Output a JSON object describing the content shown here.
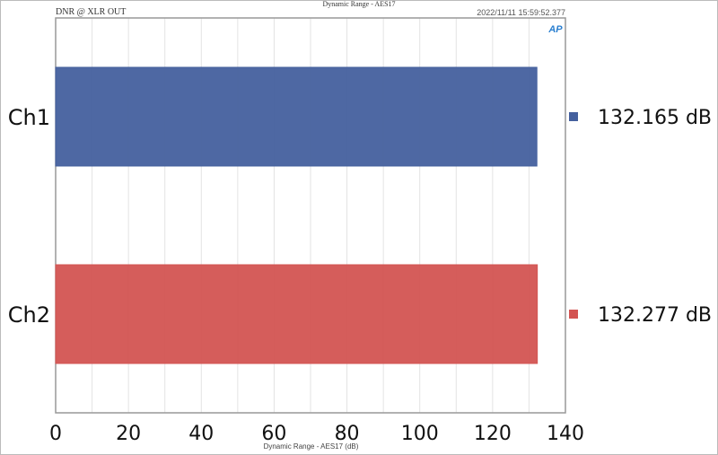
{
  "chart_data": {
    "type": "bar",
    "orientation": "horizontal",
    "title": "Dynamic Range - AES17",
    "subtitle": "DNR @ XLR OUT",
    "timestamp": "2022/11/11 15:59:52.377",
    "logo": "AP",
    "xlabel": "Dynamic Range - AES17 (dB)",
    "xlim": [
      0,
      140
    ],
    "xticks": [
      0,
      20,
      40,
      60,
      80,
      100,
      120,
      140
    ],
    "grid": true,
    "categories": [
      "Ch1",
      "Ch2"
    ],
    "values": [
      132.165,
      132.277
    ],
    "value_labels": [
      "132.165 dB",
      "132.277 dB"
    ],
    "colors": [
      "#44609e",
      "#d35452"
    ],
    "legend": "right"
  }
}
